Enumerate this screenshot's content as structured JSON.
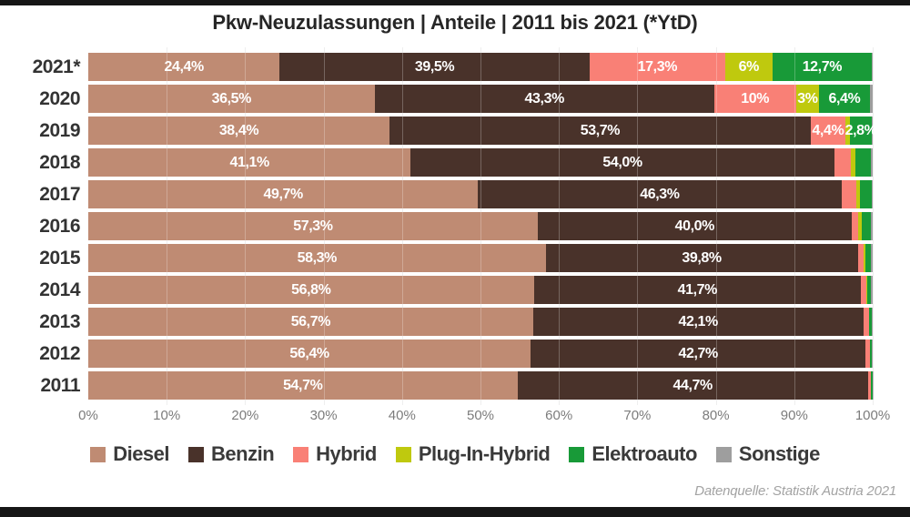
{
  "title": "Pkw-Neuzulassungen | Anteile | 2011 bis 2021 (*YtD)",
  "footer": {
    "source": "Datenquelle: Statistik Austria 2021"
  },
  "x_axis": {
    "ticks": [
      "0%",
      "10%",
      "20%",
      "30%",
      "40%",
      "50%",
      "60%",
      "70%",
      "80%",
      "90%",
      "100%"
    ]
  },
  "chart_data": {
    "type": "bar",
    "stacked": true,
    "orientation": "horizontal",
    "title": "Pkw-Neuzulassungen | Anteile | 2011 bis 2021 (*YtD)",
    "xlim": [
      0,
      100
    ],
    "x_tick_labels": [
      "0%",
      "10%",
      "20%",
      "30%",
      "40%",
      "50%",
      "60%",
      "70%",
      "80%",
      "90%",
      "100%"
    ],
    "legend_position": "bottom",
    "grid": true,
    "categories": [
      "2021*",
      "2020",
      "2019",
      "2018",
      "2017",
      "2016",
      "2015",
      "2014",
      "2013",
      "2012",
      "2011"
    ],
    "series": [
      {
        "name": "Diesel",
        "color": "#BF8B73",
        "values": [
          24.4,
          36.5,
          38.4,
          41.1,
          49.7,
          57.3,
          58.3,
          56.8,
          56.7,
          56.4,
          54.7
        ],
        "labels": [
          "24,4%",
          "36,5%",
          "38,4%",
          "41,1%",
          "49,7%",
          "57,3%",
          "58,3%",
          "56,8%",
          "56,7%",
          "56,4%",
          "54,7%"
        ]
      },
      {
        "name": "Benzin",
        "color": "#49322A",
        "values": [
          39.5,
          43.3,
          53.7,
          54.0,
          46.3,
          40.0,
          39.8,
          41.7,
          42.1,
          42.7,
          44.7
        ],
        "labels": [
          "39,5%",
          "43,3%",
          "53,7%",
          "54,0%",
          "46,3%",
          "40,0%",
          "39,8%",
          "41,7%",
          "42,1%",
          "42,7%",
          "44,7%"
        ]
      },
      {
        "name": "Hybrid",
        "color": "#F98076",
        "values": [
          17.3,
          10.4,
          4.4,
          2.1,
          1.9,
          0.9,
          0.8,
          0.7,
          0.7,
          0.5,
          0.35
        ],
        "labels": [
          "17,3%",
          "10%",
          "4,4%",
          "",
          "",
          "",
          "",
          "",
          "",
          "",
          ""
        ]
      },
      {
        "name": "Plug-In-Hybrid",
        "color": "#BFC90E",
        "values": [
          6.0,
          3.0,
          0.6,
          0.6,
          0.5,
          0.4,
          0.2,
          0.1,
          0.05,
          0.05,
          0.05
        ],
        "labels": [
          "6%",
          "3%",
          "",
          "",
          "",
          "",
          "",
          "",
          "",
          "",
          ""
        ]
      },
      {
        "name": "Elektroauto",
        "color": "#189A38",
        "values": [
          12.7,
          6.4,
          2.8,
          2.0,
          1.5,
          1.2,
          0.7,
          0.5,
          0.3,
          0.25,
          0.15
        ],
        "labels": [
          "12,7%",
          "6,4%",
          "2,8%",
          "",
          "",
          "",
          "",
          "",
          "",
          "",
          ""
        ]
      },
      {
        "name": "Sonstige",
        "color": "#9E9E9E",
        "values": [
          0.1,
          0.4,
          0.1,
          0.2,
          0.1,
          0.2,
          0.2,
          0.2,
          0.15,
          0.1,
          0.05
        ],
        "labels": [
          "",
          "",
          "",
          "",
          "",
          "",
          "",
          "",
          "",
          "",
          ""
        ]
      }
    ]
  }
}
